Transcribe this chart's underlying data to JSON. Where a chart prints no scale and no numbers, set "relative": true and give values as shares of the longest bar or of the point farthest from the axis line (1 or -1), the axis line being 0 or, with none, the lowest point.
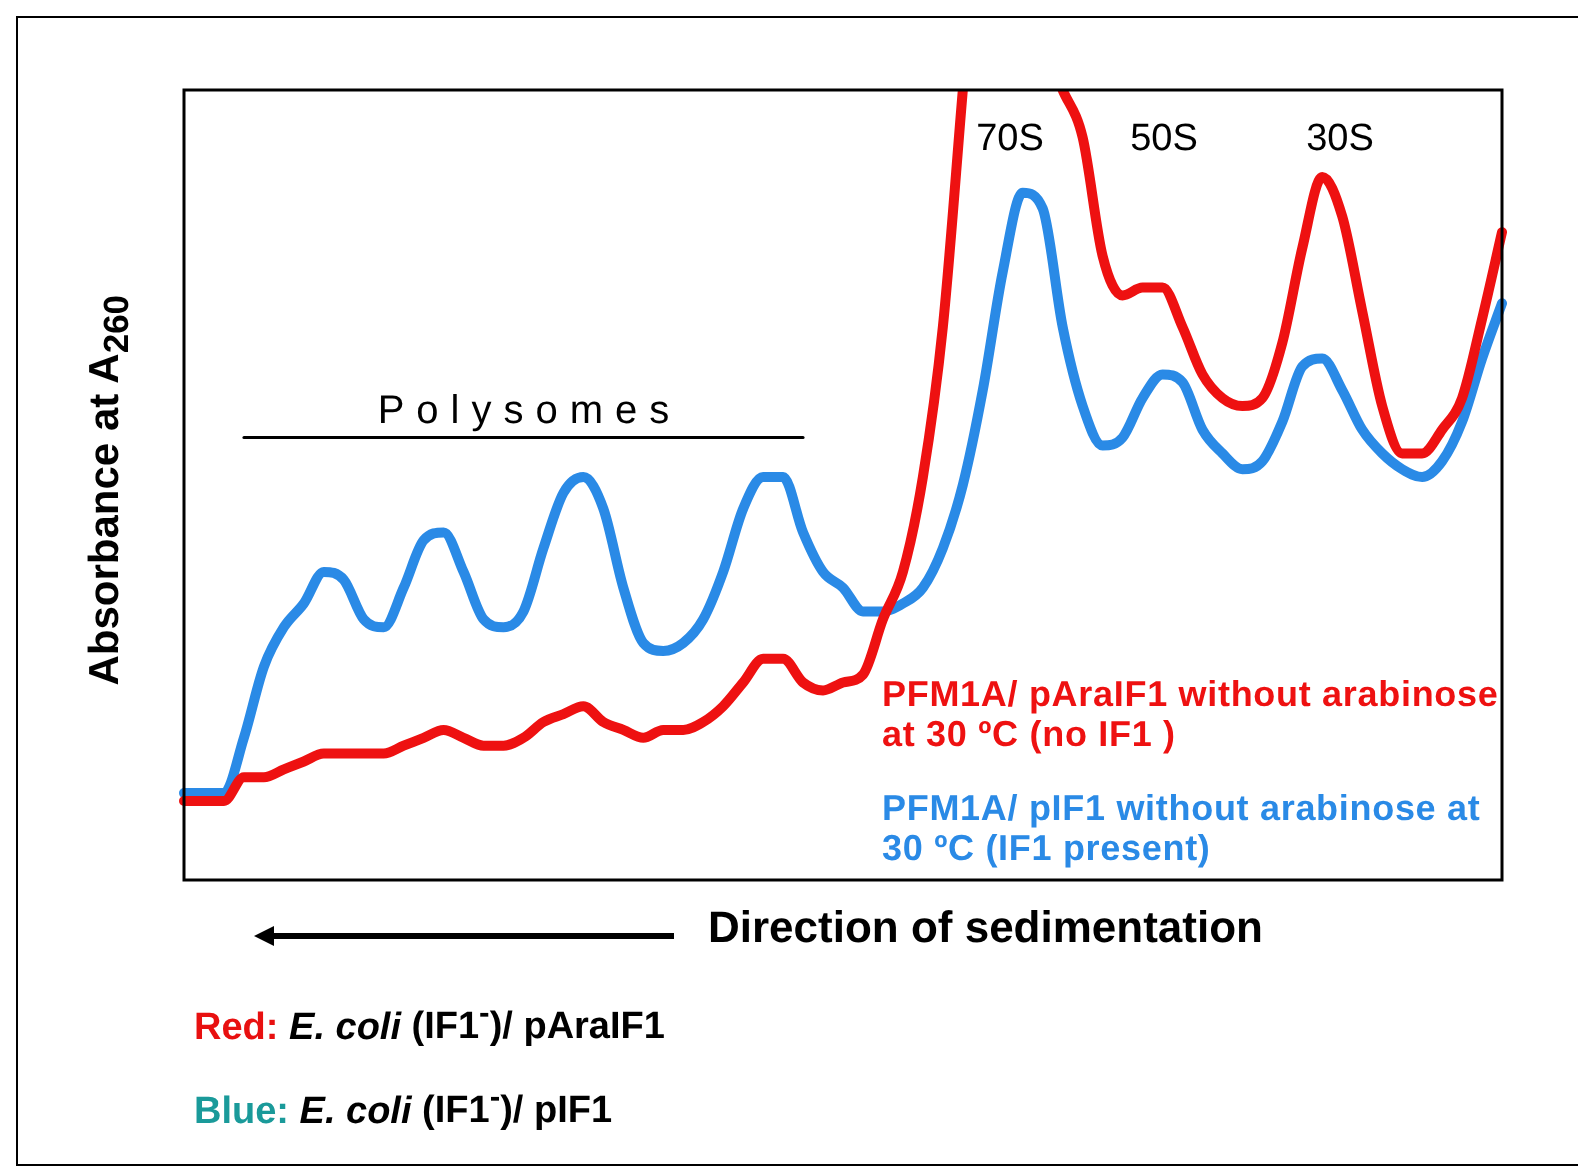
{
  "chart_data": {
    "type": "line",
    "relative": true,
    "ylabel": "Absorbance at A$_{260}$",
    "xlabel": "Direction of sedimentation",
    "legend": "bottom right",
    "categories": [
      null,
      null,
      null,
      null,
      null,
      null,
      null,
      null,
      null,
      null,
      null,
      null,
      null,
      null,
      null,
      null,
      null,
      null,
      null,
      null,
      null,
      null,
      null,
      null,
      null,
      null,
      null,
      null,
      null,
      null,
      null,
      null,
      null,
      null,
      null,
      null,
      null,
      null,
      null,
      null,
      null,
      null,
      null,
      null,
      null,
      null,
      null,
      null,
      null,
      null,
      null,
      null,
      null,
      null,
      null,
      null,
      null,
      null,
      null,
      null,
      null,
      null,
      null,
      null,
      null,
      null,
      null
    ],
    "series": [
      {
        "name": "PFM1A/ pAraIF1 without arabinose at 30 ºC (no IF1 )",
        "color": "#ee1111",
        "values": [
          0.1,
          0.1,
          0.1,
          0.13,
          0.13,
          0.14,
          0.15,
          0.16,
          0.16,
          0.16,
          0.16,
          0.17,
          0.18,
          0.19,
          0.18,
          0.17,
          0.17,
          0.18,
          0.2,
          0.21,
          0.22,
          0.2,
          0.19,
          0.18,
          0.19,
          0.19,
          0.2,
          0.22,
          0.25,
          0.28,
          0.28,
          0.25,
          0.24,
          0.25,
          0.26,
          0.33,
          0.39,
          0.51,
          0.7,
          1.0,
          null,
          null,
          null,
          null,
          1.0,
          0.94,
          0.79,
          0.74,
          0.75,
          0.75,
          0.7,
          0.64,
          0.61,
          0.6,
          0.61,
          0.68,
          0.8,
          0.89,
          0.84,
          0.72,
          0.6,
          0.54,
          0.54,
          0.57,
          0.61,
          0.71,
          0.82
        ]
      },
      {
        "name": "PFM1A/ pIF1 without arabinose at 30 ºC  (IF1 present)",
        "color": "#2a8ae6",
        "values": [
          0.11,
          0.11,
          0.11,
          0.18,
          0.27,
          0.32,
          0.35,
          0.39,
          0.38,
          0.33,
          0.32,
          0.37,
          0.43,
          0.44,
          0.39,
          0.33,
          0.32,
          0.34,
          0.42,
          0.49,
          0.51,
          0.47,
          0.37,
          0.3,
          0.29,
          0.3,
          0.33,
          0.39,
          0.47,
          0.51,
          0.51,
          0.44,
          0.39,
          0.37,
          0.34,
          0.34,
          0.35,
          0.37,
          0.42,
          0.5,
          0.62,
          0.77,
          0.87,
          0.85,
          0.7,
          0.6,
          0.55,
          0.56,
          0.61,
          0.64,
          0.63,
          0.57,
          0.54,
          0.52,
          0.53,
          0.58,
          0.65,
          0.66,
          0.62,
          0.57,
          0.54,
          0.52,
          0.51,
          0.53,
          0.58,
          0.66,
          0.73
        ]
      },
      {
        "name": "Polysomes",
        "color": "#000000",
        "values": [
          null,
          null,
          null,
          0.56,
          0.56,
          0.56,
          0.56,
          0.56,
          0.56,
          0.56,
          0.56,
          0.56,
          0.56,
          0.56,
          0.56,
          0.56,
          0.56,
          0.56,
          0.56,
          0.56,
          0.56,
          0.56,
          0.56,
          0.56,
          0.56,
          0.56,
          0.56,
          0.56,
          0.56,
          0.56,
          0.56,
          0.56,
          null,
          null,
          null,
          null,
          null,
          null,
          null,
          null,
          null,
          null,
          null,
          null,
          null,
          null,
          null,
          null,
          null,
          null,
          null,
          null,
          null,
          null,
          null,
          null,
          null,
          null,
          null,
          null,
          null,
          null,
          null,
          null,
          null,
          null,
          null
        ]
      }
    ],
    "annotations": [
      "70S",
      "50S",
      "30S",
      "Red: E. coli (IF1$^{-}$)/ pAraIF1",
      "Blue: E. coli (IF1$^{-}$)/ pIF1"
    ]
  }
}
